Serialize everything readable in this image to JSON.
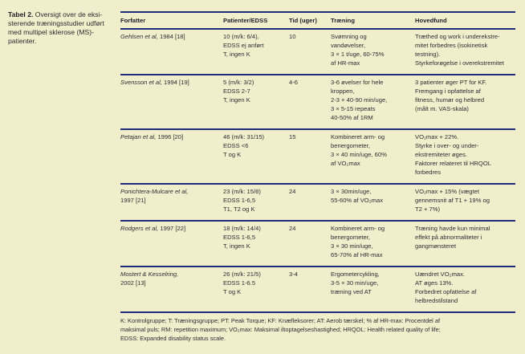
{
  "caption": {
    "label": "Tabel 2.",
    "text": "Oversigt over de eksi-\nsterende træningsstudier udført\nmed multipel sklerose (MS)-\npatienter."
  },
  "table": {
    "headers": {
      "forfatter": "Forfatter",
      "patienter": "Patienter/EDSS",
      "tid": "Tid (uger)",
      "traening": "Træning",
      "hovedfund": "Hovedfund"
    },
    "rows": [
      {
        "name": "Gehlsen et al,",
        "year": " 1984 [18]",
        "patienter": "10 (m/k: 6/4),\nEDSS ej anført\nT, ingen K",
        "tid": "10",
        "traening": "Svømning og\nvandøvelser,\n3 × 1 t/uge, 60-75%\naf HR-max",
        "hovedfund": "Træthed og work i underekstre-\nmitet forbedres (isokinetisk\ntestning).\nStyrkeforøgelse i overekstremitet"
      },
      {
        "name": "Svensson et al,",
        "year": " 1994 [19]",
        "patienter": "5 (m/k: 3/2)\nEDSS 2-7\nT, ingen K",
        "tid": "4-6",
        "traening": "3-6 øvelser for hele\nkroppen,\n2-3 × 40-90 min/uge,\n3 × 5-15 repeats\n40-50% af 1RM",
        "hovedfund": "3 patienter øger PT for KF.\nFremgang i opfattelse af\nfitness, humør og helbred\n(målt m. VAS-skala)"
      },
      {
        "name": "Petajan et al,",
        "year": " 1996 [20]",
        "patienter": "46 (m/k: 31/15)\nEDSS <6\nT og K",
        "tid": "15",
        "traening": "Kombineret arm- og\nbenergometer,\n3 × 40 min/uge, 60%\naf VO₂max",
        "hovedfund": "VO₂max + 22%.\nStyrke i over- og under-\nekstremiteter øges.\nFaktorer relateret til HRQOL\nforbedres"
      },
      {
        "name": "Ponichtera-Mulcare et al,",
        "year": "\n1997 [21]",
        "patienter": "23 (m/k: 15/8)\nEDSS 1-6,5\nT1, T2 og K",
        "tid": "24",
        "traening": "3 × 30min/uge,\n55-60% af VO₂max",
        "hovedfund": "VO₂max + 15% (vægtet\ngennemsnit af T1 + 19% og\nT2 + 7%)"
      },
      {
        "name": "Rodgers et al,",
        "year": " 1997 [22]",
        "patienter": "18 (m/k: 14/4)\nEDSS 1-6,5\nT, ingen K",
        "tid": "24",
        "traening": "Kombineret arm- og\nbenergometer,\n3 × 30 min/uge,\n65-70% af HR-max",
        "hovedfund": "Træning havde kun minimal\neffekt på abnormaliteter i\ngangmønsteret"
      },
      {
        "name": "Mostert & Kesselring,",
        "year": "\n2002 [13]",
        "patienter": "26 (m/k: 21/5)\nEDSS 1-6.5\nT og K",
        "tid": "3-4",
        "traening": "Ergometercykling,\n3-5 × 30 min/uge,\ntræning ved AT",
        "hovedfund": "Uændret VO₂max.\nAT øges 13%.\nForbedret opfattelse af\nhelbredstilstand"
      }
    ],
    "footnote": "K: Kontrolgruppe; T: Træningsgruppe; PT: Peak Torque; KF: Knæfleksorer; AT: Aerob tærskel; % af HR-max: Procentdel af\nmaksimal puls; RM: repetition maximum; VO₂max: Maksimal iltoptagelseshastighed; HRQOL: Health related quality of life;\nEDSS: Expanded disability status scale."
  },
  "colors": {
    "background": "#f1eecb",
    "rule_navy": "#1e2a7a",
    "text": "#2c2c36"
  }
}
